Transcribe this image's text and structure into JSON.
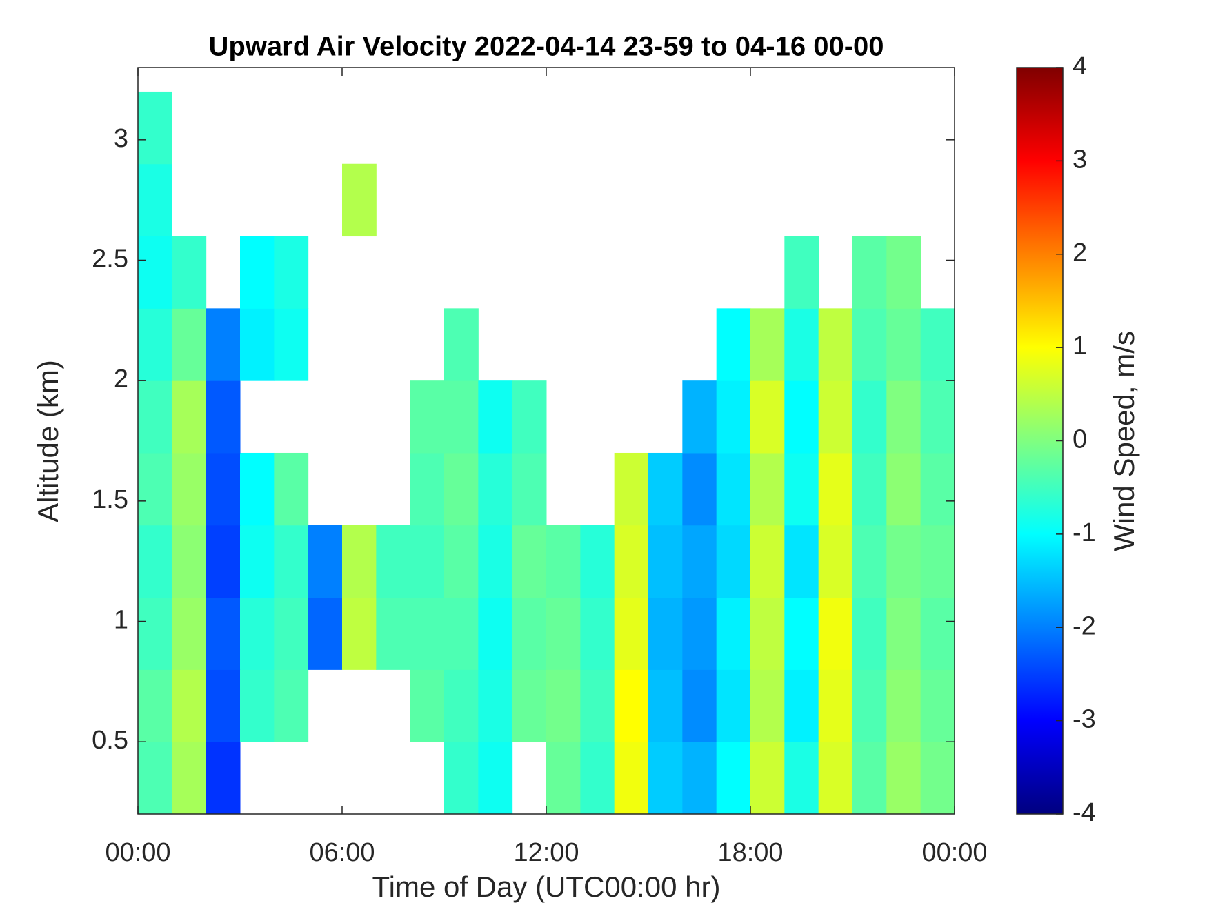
{
  "chart_data": {
    "type": "heatmap",
    "title": "Upward Air Velocity 2022-04-14 23-59 to 04-16 00-00",
    "x_label": "Time of Day (UTC00:00 hr)",
    "y_label": "Altitude (km)",
    "colorbar_label": "Wind Speed, m/s",
    "colormap": "jet",
    "x": [
      0.5,
      1.5,
      2.5,
      3.5,
      4.5,
      5.5,
      6.5,
      7.5,
      8.5,
      9.5,
      10.5,
      11.5,
      12.5,
      13.5,
      14.5,
      15.5,
      16.5,
      17.5,
      18.5,
      19.5,
      20.5,
      21.5,
      22.5,
      23.5
    ],
    "y": [
      0.35,
      0.65,
      0.95,
      1.25,
      1.55,
      1.85,
      2.15,
      2.45,
      2.75,
      3.05
    ],
    "z": [
      [
        -0.4,
        0.3,
        -2.6,
        null,
        null,
        null,
        null,
        null,
        null,
        -0.6,
        -0.9,
        null,
        -0.2,
        -0.6,
        0.9,
        -1.4,
        -1.6,
        -1.0,
        0.6,
        -0.8,
        0.7,
        -0.3,
        0.2,
        -0.1
      ],
      [
        -0.3,
        0.4,
        -2.4,
        -0.6,
        -0.4,
        null,
        null,
        null,
        -0.3,
        -0.5,
        -0.8,
        -0.2,
        -0.1,
        -0.5,
        1.0,
        -1.5,
        -1.9,
        -1.2,
        0.4,
        -1.1,
        0.8,
        -0.4,
        0.1,
        -0.2
      ],
      [
        -0.5,
        0.2,
        -2.3,
        -0.7,
        -0.5,
        -2.2,
        0.5,
        -0.4,
        -0.4,
        -0.4,
        -0.9,
        -0.3,
        -0.2,
        -0.6,
        0.8,
        -1.6,
        -1.8,
        -1.1,
        0.5,
        -1.0,
        0.9,
        -0.5,
        0.0,
        -0.3
      ],
      [
        -0.6,
        0.1,
        -2.5,
        -0.9,
        -0.6,
        -2.0,
        0.4,
        -0.5,
        -0.5,
        -0.3,
        -0.8,
        -0.2,
        -0.3,
        -0.7,
        0.7,
        -1.5,
        -1.7,
        -1.3,
        0.6,
        -1.2,
        0.7,
        -0.4,
        -0.1,
        -0.2
      ],
      [
        -0.4,
        0.2,
        -2.4,
        -1.0,
        -0.3,
        null,
        null,
        null,
        -0.4,
        -0.2,
        -0.7,
        -0.4,
        null,
        null,
        0.6,
        -1.4,
        -1.9,
        -1.2,
        0.4,
        -0.9,
        0.8,
        -0.5,
        0.1,
        -0.3
      ],
      [
        -0.5,
        0.3,
        -2.3,
        null,
        null,
        null,
        null,
        null,
        -0.3,
        -0.3,
        -0.9,
        -0.5,
        null,
        null,
        null,
        null,
        -1.6,
        -1.1,
        0.7,
        -1.0,
        0.6,
        -0.6,
        0.0,
        -0.4
      ],
      [
        -0.7,
        -0.2,
        -2.0,
        -1.1,
        -0.9,
        null,
        null,
        null,
        null,
        -0.4,
        null,
        null,
        null,
        null,
        null,
        null,
        null,
        -1.0,
        0.3,
        -0.8,
        0.5,
        -0.4,
        -0.2,
        -0.5
      ],
      [
        -0.9,
        -0.6,
        null,
        -1.0,
        -0.8,
        null,
        null,
        null,
        null,
        null,
        null,
        null,
        null,
        null,
        null,
        null,
        null,
        null,
        null,
        -0.5,
        null,
        -0.3,
        -0.1,
        null
      ],
      [
        -0.8,
        null,
        null,
        null,
        null,
        null,
        0.4,
        null,
        null,
        null,
        null,
        null,
        null,
        null,
        null,
        null,
        null,
        null,
        null,
        null,
        null,
        null,
        null,
        null
      ],
      [
        -0.6,
        null,
        null,
        null,
        null,
        null,
        null,
        null,
        null,
        null,
        null,
        null,
        null,
        null,
        null,
        null,
        null,
        null,
        null,
        null,
        null,
        null,
        null,
        null
      ]
    ],
    "xlim": [
      0,
      24
    ],
    "xticks": [
      {
        "value": 0,
        "label": "00:00"
      },
      {
        "value": 6,
        "label": "06:00"
      },
      {
        "value": 12,
        "label": "12:00"
      },
      {
        "value": 18,
        "label": "18:00"
      },
      {
        "value": 24,
        "label": "00:00"
      }
    ],
    "ylim": [
      0.2,
      3.3
    ],
    "yticks": [
      0.5,
      1,
      1.5,
      2,
      2.5,
      3
    ],
    "clim": [
      -4,
      4
    ],
    "cticks": [
      -4,
      -3,
      -2,
      -1,
      0,
      1,
      2,
      3,
      4
    ]
  }
}
